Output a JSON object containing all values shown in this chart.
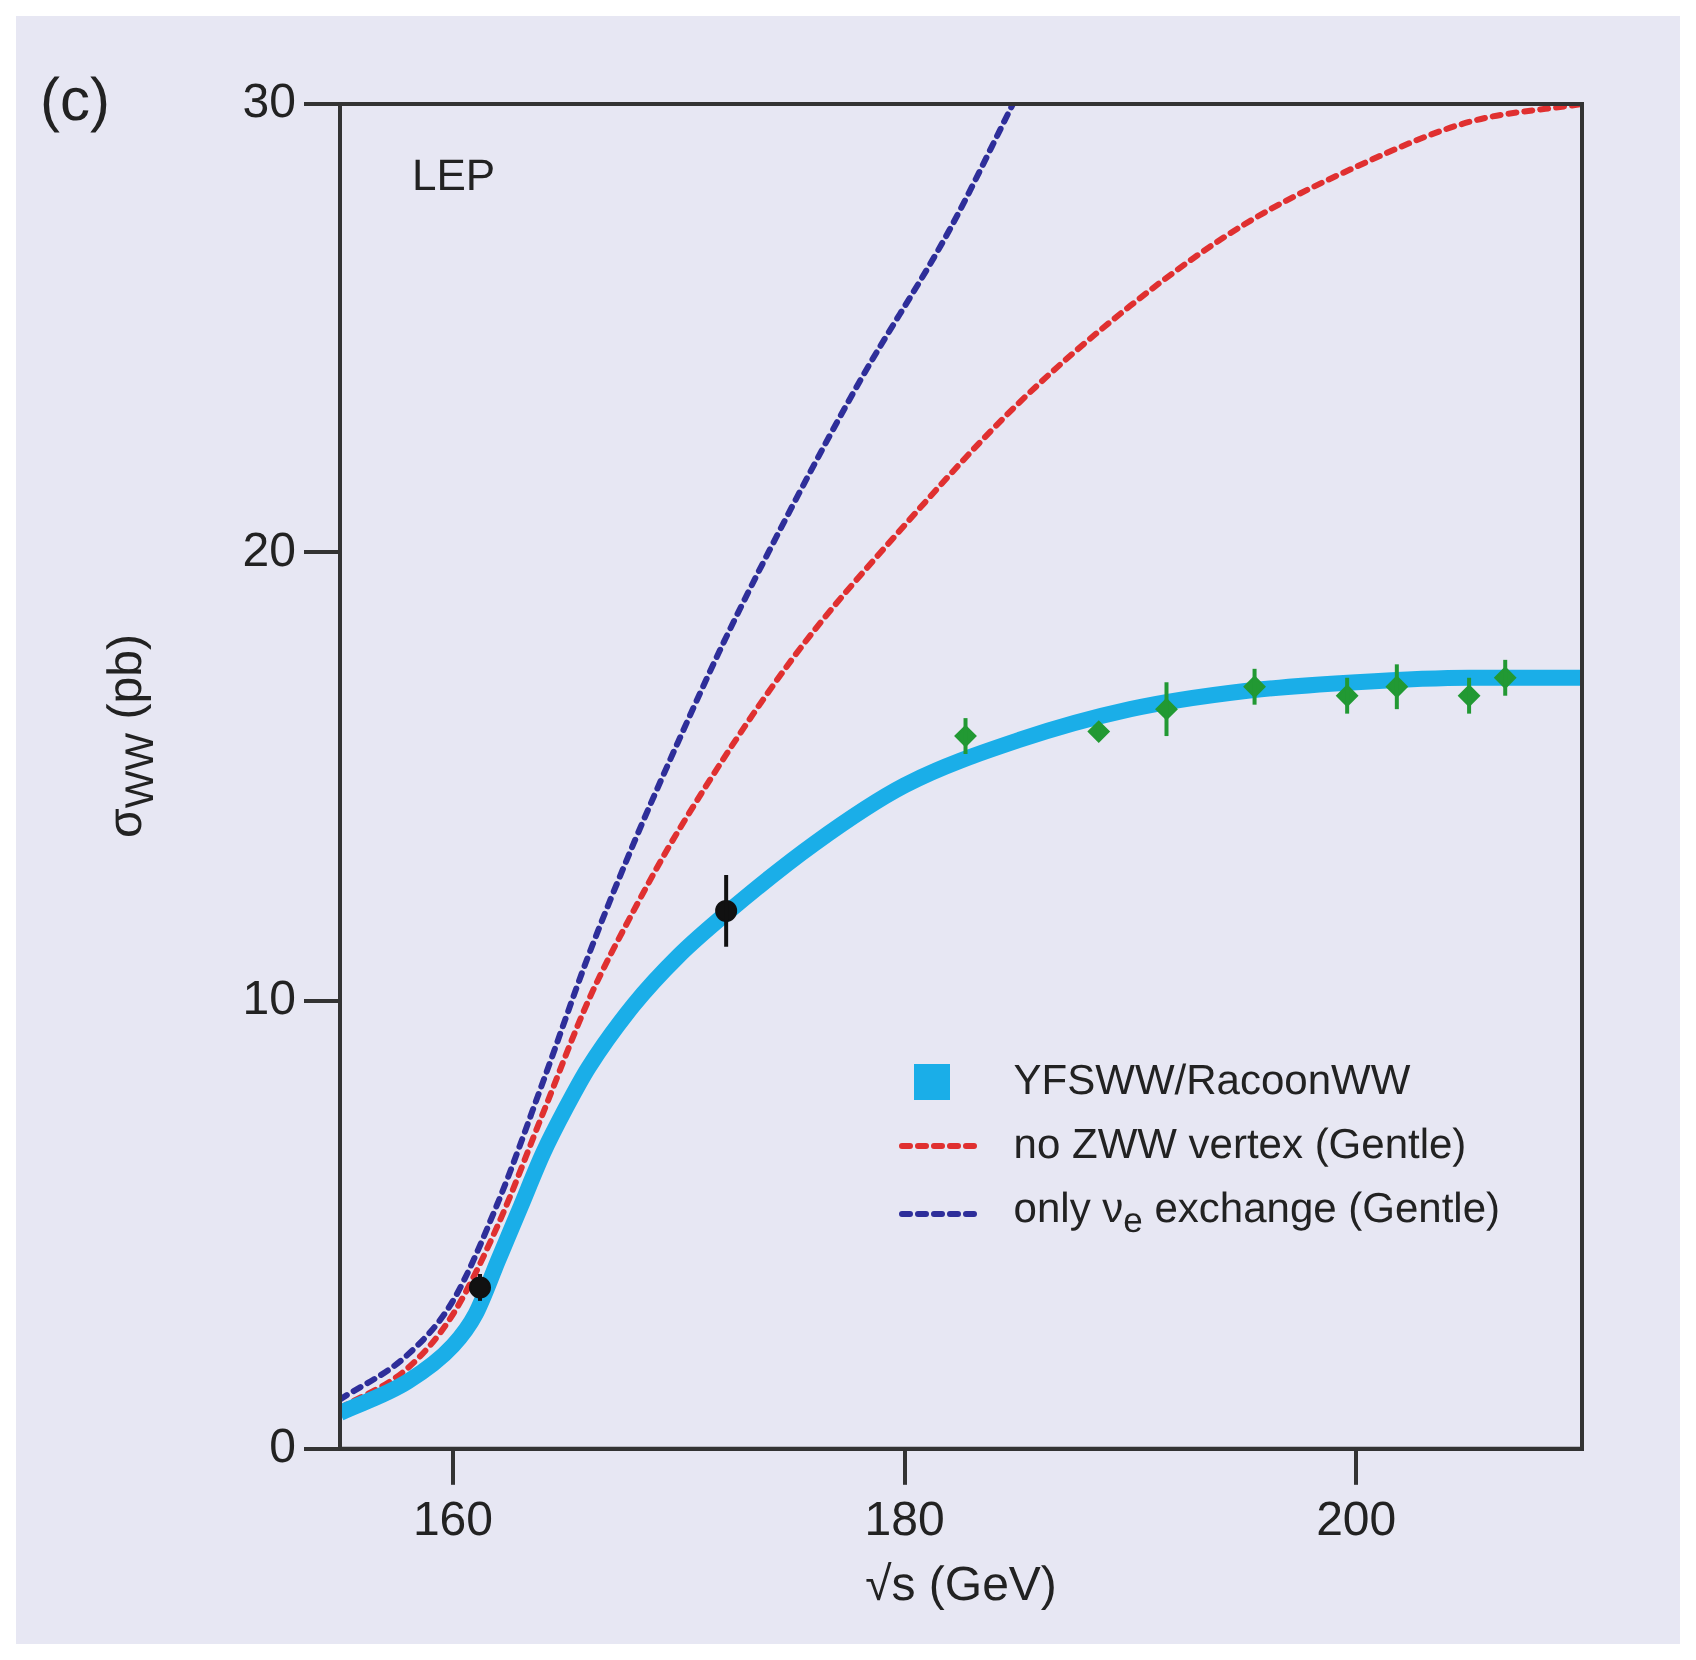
{
  "chart_data": {
    "type": "line",
    "title": "(c)",
    "xlabel": "√s (GeV)",
    "ylabel": "σ$_{WW}$ (pb)",
    "annotations": [
      "LEP"
    ],
    "xlim": [
      155,
      210
    ],
    "ylim": [
      0,
      30
    ],
    "xticks": [
      160,
      180,
      200
    ],
    "yticks": [
      0,
      10,
      20,
      30
    ],
    "grid": false,
    "legend": "bottom right",
    "series": [
      {
        "name": "YFSWW/RacoonWW",
        "type": "line",
        "color": "#1aaee8",
        "line_style": "solid",
        "marker": "none",
        "x": [
          155,
          158,
          160,
          161,
          162,
          163,
          164,
          165,
          166,
          168,
          170,
          172,
          176,
          180,
          185,
          190,
          195,
          200,
          205,
          210
        ],
        "values": [
          0.8,
          1.5,
          2.3,
          3.0,
          4.2,
          5.4,
          6.6,
          7.6,
          8.5,
          9.9,
          11.0,
          11.9,
          13.5,
          14.8,
          15.8,
          16.5,
          16.9,
          17.1,
          17.2,
          17.2
        ]
      },
      {
        "name": "no ZWW vertex (Gentle)",
        "type": "line",
        "color": "#e03030",
        "line_style": "dotted",
        "marker": "none",
        "x": [
          155,
          158,
          160,
          162,
          164,
          166,
          168,
          170,
          175,
          180,
          185,
          190,
          195,
          200,
          205,
          210
        ],
        "values": [
          0.9,
          1.8,
          3.0,
          5.0,
          7.5,
          10.0,
          12.0,
          13.8,
          17.6,
          20.6,
          23.3,
          25.5,
          27.3,
          28.6,
          29.6,
          30
        ]
      },
      {
        "name": "only ν$_{e}$ exchange (Gentle)",
        "type": "line",
        "color": "#2e2e9a",
        "line_style": "dotted",
        "marker": "none",
        "x": [
          155,
          158,
          160,
          162,
          164,
          166,
          168,
          170,
          172,
          175,
          178,
          182,
          184.8
        ],
        "values": [
          1.1,
          2.1,
          3.3,
          5.5,
          8.2,
          11.0,
          13.5,
          15.8,
          18.0,
          21.0,
          23.8,
          27.2,
          30
        ]
      },
      {
        "type": "scatter",
        "color": "#111111",
        "marker": "circle",
        "x": [
          161.2,
          172.1
        ],
        "values": [
          3.6,
          12.0
        ],
        "errors": [
          0.3,
          0.8
        ]
      },
      {
        "type": "scatter",
        "color": "#229933",
        "marker": "diamond",
        "x": [
          182.7,
          188.6,
          191.6,
          195.5,
          199.6,
          201.8,
          205,
          206.6
        ],
        "values": [
          15.9,
          16.0,
          16.5,
          17.0,
          16.8,
          17.0,
          16.8,
          17.2
        ],
        "errors": [
          0.4,
          0.2,
          0.6,
          0.4,
          0.4,
          0.5,
          0.4,
          0.4
        ]
      }
    ]
  }
}
